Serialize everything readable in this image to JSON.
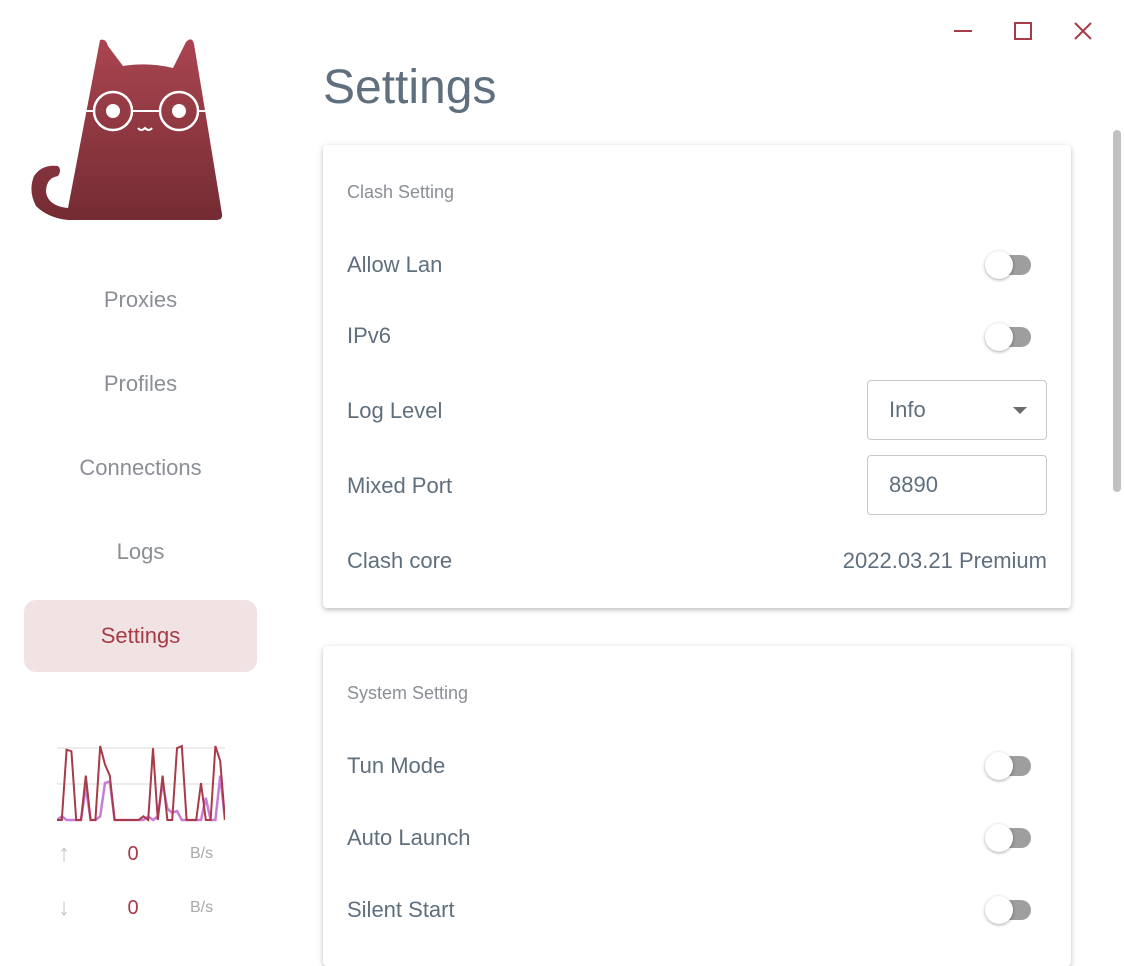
{
  "window_controls": {
    "minimize": "minimize-icon",
    "maximize": "maximize-icon",
    "close": "close-icon",
    "color": "#a73b47"
  },
  "nav": {
    "items": [
      {
        "label": "Proxies"
      },
      {
        "label": "Profiles"
      },
      {
        "label": "Connections"
      },
      {
        "label": "Logs"
      },
      {
        "label": "Settings",
        "active": true
      }
    ]
  },
  "traffic": {
    "upload_value": "0",
    "upload_unit": "B/s",
    "download_value": "0",
    "download_unit": "B/s",
    "upload_series": [
      0,
      0,
      0.95,
      0.93,
      0,
      0,
      0.6,
      0,
      0,
      1,
      0.75,
      0.6,
      0,
      0,
      0,
      0,
      0,
      0,
      0.05,
      0,
      0.97,
      0,
      0.6,
      0,
      0,
      0.97,
      1,
      0,
      0,
      0,
      0.5,
      0,
      0,
      1,
      0.8,
      0
    ],
    "download_series": [
      0,
      0.05,
      0,
      0,
      0,
      0,
      0.45,
      0,
      0,
      0.05,
      0.5,
      0.52,
      0,
      0,
      0,
      0,
      0,
      0,
      0,
      0.05,
      0,
      0.05,
      0.5,
      0.15,
      0.1,
      0.12,
      0,
      0,
      0,
      0,
      0,
      0.3,
      0,
      0,
      0.6,
      0
    ]
  },
  "page": {
    "title": "Settings"
  },
  "clash_setting": {
    "title": "Clash Setting",
    "allow_lan": {
      "label": "Allow Lan",
      "on": false
    },
    "ipv6": {
      "label": "IPv6",
      "on": false
    },
    "log_level": {
      "label": "Log Level",
      "value": "Info"
    },
    "mixed_port": {
      "label": "Mixed Port",
      "value": "8890"
    },
    "clash_core": {
      "label": "Clash core",
      "value": "2022.03.21 Premium"
    }
  },
  "system_setting": {
    "title": "System Setting",
    "tun_mode": {
      "label": "Tun Mode",
      "on": false
    },
    "auto_launch": {
      "label": "Auto Launch",
      "on": false
    },
    "silent_start": {
      "label": "Silent Start",
      "on": false
    }
  }
}
